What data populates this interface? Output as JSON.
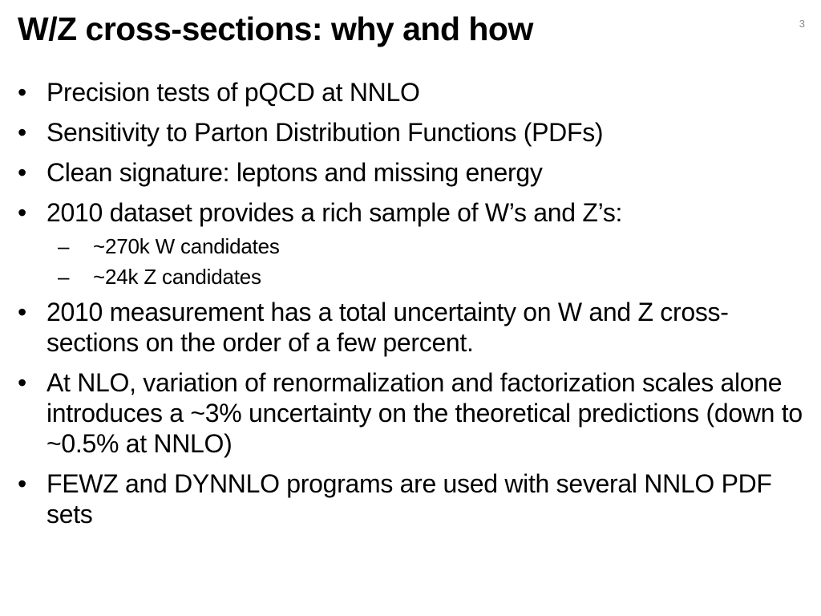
{
  "slide": {
    "title": "W/Z cross-sections: why and how",
    "page_number": "3"
  },
  "bullets": [
    {
      "text": "Precision tests of pQCD at NNLO"
    },
    {
      "text": "Sensitivity to Parton Distribution Functions (PDFs)"
    },
    {
      "text": "Clean signature: leptons and missing energy"
    },
    {
      "text": "2010 dataset provides a rich sample of W’s and Z’s:",
      "sub": [
        {
          "text": "~270k W candidates"
        },
        {
          "text": "~24k Z candidates"
        }
      ]
    },
    {
      "text": "2010 measurement has a total uncertainty on W and Z cross-sections on the order of a few percent."
    },
    {
      "text": "At NLO, variation of renormalization and factorization scales alone introduces a ~3% uncertainty on the theoretical predictions (down to ~0.5% at NNLO)"
    },
    {
      "text": "FEWZ and DYNNLO programs are used with several NNLO PDF sets"
    }
  ],
  "markers": {
    "bullet": "•",
    "dash": "–"
  }
}
